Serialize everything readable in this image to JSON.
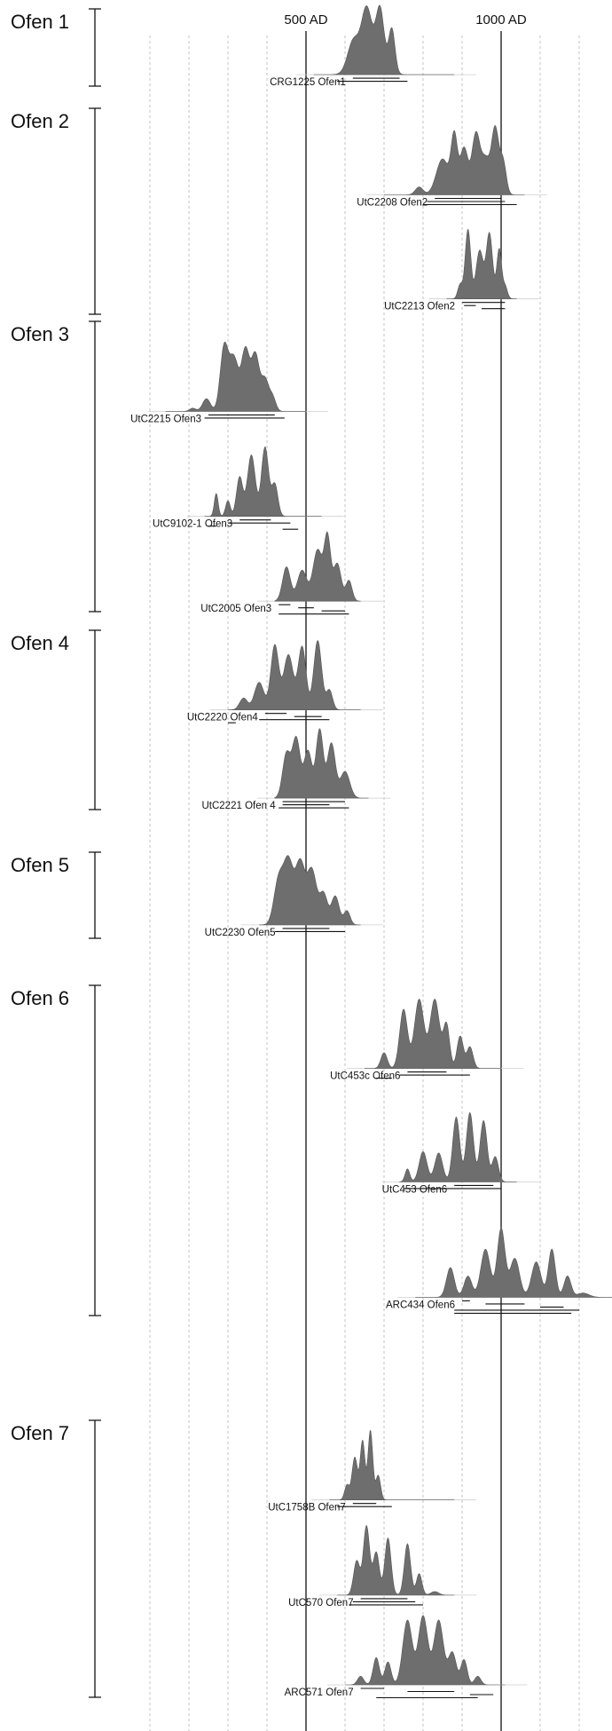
{
  "chart_data": {
    "type": "area",
    "title": "",
    "xlabel": "",
    "ylabel": "",
    "x_unit": "year AD",
    "xlim": [
      0,
      1350
    ],
    "grid": true,
    "reference_lines": [
      {
        "year": 500,
        "label": "500 AD"
      },
      {
        "year": 1000,
        "label": "1000 AD"
      }
    ],
    "groups": [
      {
        "label": "Ofen 1",
        "samples": [
          {
            "label": "CRG1225 Ofen1",
            "min": 520,
            "max": 880,
            "peaks": [
              [
                620,
                0.45,
                14
              ],
              [
                655,
                0.72,
                12
              ],
              [
                690,
                0.94,
                10
              ],
              [
                720,
                0.78,
                8
              ],
              [
                660,
                0.5,
                28
              ]
            ],
            "ranges": [
              [
                620,
                740
              ],
              [
                580,
                760
              ]
            ]
          }
        ]
      },
      {
        "label": "Ofen 2",
        "samples": [
          {
            "label": "UtC2208 Ofen2",
            "min": 700,
            "max": 1060,
            "peaks": [
              [
                790,
                0.12,
                10
              ],
              [
                850,
                0.55,
                16
              ],
              [
                880,
                0.86,
                8
              ],
              [
                905,
                0.72,
                10
              ],
              [
                935,
                0.9,
                10
              ],
              [
                960,
                0.55,
                12
              ],
              [
                985,
                0.98,
                9
              ],
              [
                1005,
                0.5,
                8
              ]
            ],
            "ranges": [
              [
                830,
                1000
              ],
              [
                810,
                1010
              ],
              [
                800,
                1040
              ]
            ]
          },
          {
            "label": "UtC2213 Ofen2",
            "min": 860,
            "max": 1040,
            "peaks": [
              [
                895,
                0.2,
                6
              ],
              [
                915,
                0.98,
                7
              ],
              [
                945,
                0.68,
                9
              ],
              [
                970,
                0.92,
                8
              ],
              [
                995,
                0.7,
                6
              ],
              [
                1010,
                0.18,
                6
              ]
            ],
            "ranges": [
              [
                900,
                1010
              ],
              [
                905,
                935
              ],
              [
                950,
                1010
              ]
            ]
          }
        ]
      },
      {
        "label": "Ofen 3",
        "samples": [
          {
            "label": "UtC2215 Ofen3",
            "min": 140,
            "max": 500,
            "peaks": [
              [
                210,
                0.05,
                8
              ],
              [
                245,
                0.2,
                10
              ],
              [
                290,
                0.98,
                10
              ],
              [
                315,
                0.84,
                12
              ],
              [
                345,
                0.95,
                10
              ],
              [
                370,
                0.88,
                10
              ],
              [
                395,
                0.5,
                10
              ],
              [
                415,
                0.2,
                8
              ]
            ],
            "ranges": [
              [
                250,
                420
              ],
              [
                240,
                445
              ]
            ]
          },
          {
            "label": "UtC9102-1 Ofen3",
            "min": 240,
            "max": 540,
            "peaks": [
              [
                270,
                0.32,
                5
              ],
              [
                300,
                0.22,
                6
              ],
              [
                330,
                0.55,
                8
              ],
              [
                360,
                0.86,
                10
              ],
              [
                395,
                0.97,
                9
              ],
              [
                420,
                0.45,
                8
              ]
            ],
            "ranges": [
              [
                330,
                410
              ],
              [
                300,
                460
              ],
              [
                250,
                270
              ],
              [
                440,
                480
              ]
            ]
          },
          {
            "label": "UtC2005 Ofen3",
            "min": 420,
            "max": 640,
            "peaks": [
              [
                450,
                0.5,
                10
              ],
              [
                490,
                0.45,
                12
              ],
              [
                530,
                0.75,
                12
              ],
              [
                555,
                0.9,
                8
              ],
              [
                580,
                0.55,
                10
              ],
              [
                610,
                0.3,
                8
              ]
            ],
            "ranges": [
              [
                430,
                460
              ],
              [
                480,
                520
              ],
              [
                540,
                600
              ],
              [
                430,
                610
              ]
            ]
          }
        ]
      },
      {
        "label": "Ofen 4",
        "samples": [
          {
            "label": "UtC2220 Ofen4",
            "min": 300,
            "max": 640,
            "peaks": [
              [
                340,
                0.15,
                10
              ],
              [
                380,
                0.35,
                12
              ],
              [
                420,
                0.82,
                10
              ],
              [
                455,
                0.7,
                12
              ],
              [
                490,
                0.8,
                10
              ],
              [
                530,
                0.88,
                10
              ],
              [
                560,
                0.25,
                8
              ]
            ],
            "ranges": [
              [
                395,
                450
              ],
              [
                470,
                540
              ],
              [
                380,
                560
              ],
              [
                300,
                320
              ]
            ]
          },
          {
            "label": "UtC2221 Ofen 4",
            "min": 420,
            "max": 660,
            "peaks": [
              [
                450,
                0.58,
                10
              ],
              [
                475,
                0.78,
                10
              ],
              [
                505,
                0.62,
                10
              ],
              [
                535,
                0.9,
                9
              ],
              [
                565,
                0.72,
                10
              ],
              [
                600,
                0.35,
                12
              ]
            ],
            "ranges": [
              [
                440,
                600
              ],
              [
                440,
                560
              ],
              [
                430,
                610
              ]
            ]
          }
        ]
      },
      {
        "label": "Ofen 5",
        "samples": [
          {
            "label": "UtC2230 Ofen5",
            "min": 380,
            "max": 640,
            "peaks": [
              [
                430,
                0.7,
                12
              ],
              [
                455,
                0.96,
                12
              ],
              [
                485,
                0.96,
                12
              ],
              [
                515,
                0.85,
                12
              ],
              [
                545,
                0.48,
                10
              ],
              [
                575,
                0.45,
                10
              ],
              [
                605,
                0.22,
                8
              ]
            ],
            "ranges": [
              [
                440,
                560
              ],
              [
                420,
                600
              ]
            ]
          }
        ]
      },
      {
        "label": "Ofen 6",
        "samples": [
          {
            "label": "UtC453c Ofen6",
            "min": 650,
            "max": 1000,
            "peaks": [
              [
                700,
                0.22,
                8
              ],
              [
                750,
                0.82,
                10
              ],
              [
                790,
                0.96,
                12
              ],
              [
                830,
                0.96,
                12
              ],
              [
                860,
                0.6,
                8
              ],
              [
                895,
                0.45,
                8
              ],
              [
                920,
                0.3,
                8
              ]
            ],
            "ranges": [
              [
                760,
                860
              ],
              [
                740,
                920
              ],
              [
                680,
                720
              ]
            ]
          },
          {
            "label": "UtC453 Ofen6",
            "min": 740,
            "max": 1040,
            "peaks": [
              [
                760,
                0.18,
                6
              ],
              [
                800,
                0.42,
                10
              ],
              [
                840,
                0.4,
                10
              ],
              [
                885,
                0.9,
                9
              ],
              [
                920,
                0.96,
                9
              ],
              [
                955,
                0.85,
                9
              ],
              [
                985,
                0.35,
                8
              ]
            ],
            "ranges": [
              [
                880,
                980
              ],
              [
                750,
                1000
              ]
            ]
          },
          {
            "label": "ARC434 Ofen6",
            "min": 780,
            "max": 1360,
            "peaks": [
              [
                870,
                0.42,
                10
              ],
              [
                915,
                0.3,
                10
              ],
              [
                960,
                0.68,
                12
              ],
              [
                1000,
                0.97,
                10
              ],
              [
                1035,
                0.55,
                12
              ],
              [
                1090,
                0.5,
                12
              ],
              [
                1130,
                0.68,
                9
              ],
              [
                1170,
                0.3,
                9
              ],
              [
                1210,
                0.06,
                15
              ]
            ],
            "ranges": [
              [
                900,
                920
              ],
              [
                960,
                1060
              ],
              [
                1100,
                1160
              ],
              [
                880,
                1200
              ],
              [
                880,
                1180
              ]
            ]
          }
        ]
      },
      {
        "label": "Ofen 7",
        "samples": [
          {
            "label": "UtC1758B Ofen7",
            "min": 560,
            "max": 880,
            "peaks": [
              [
                605,
                0.18,
                6
              ],
              [
                625,
                0.52,
                7
              ],
              [
                645,
                0.72,
                6
              ],
              [
                665,
                0.85,
                6
              ],
              [
                685,
                0.3,
                6
              ]
            ],
            "ranges": [
              [
                620,
                680
              ],
              [
                580,
                720
              ]
            ]
          },
          {
            "label": "UtC570 Ofen7",
            "min": 580,
            "max": 880,
            "peaks": [
              [
                630,
                0.48,
                8
              ],
              [
                655,
                0.97,
                8
              ],
              [
                680,
                0.6,
                8
              ],
              [
                710,
                0.8,
                8
              ],
              [
                760,
                0.72,
                8
              ],
              [
                790,
                0.3,
                7
              ],
              [
                830,
                0.05,
                10
              ]
            ],
            "ranges": [
              [
                640,
                760
              ],
              [
                620,
                780
              ],
              [
                610,
                800
              ]
            ]
          },
          {
            "label": "ARC571 Ofen7",
            "min": 600,
            "max": 1010,
            "peaks": [
              [
                640,
                0.12,
                8
              ],
              [
                680,
                0.38,
                8
              ],
              [
                710,
                0.32,
                8
              ],
              [
                760,
                0.9,
                12
              ],
              [
                800,
                0.96,
                12
              ],
              [
                840,
                0.9,
                12
              ],
              [
                875,
                0.45,
                10
              ],
              [
                905,
                0.35,
                8
              ],
              [
                940,
                0.12,
                8
              ]
            ],
            "ranges": [
              [
                640,
                700
              ],
              [
                760,
                880
              ],
              [
                920,
                980
              ],
              [
                680,
                940
              ]
            ]
          }
        ]
      }
    ]
  }
}
